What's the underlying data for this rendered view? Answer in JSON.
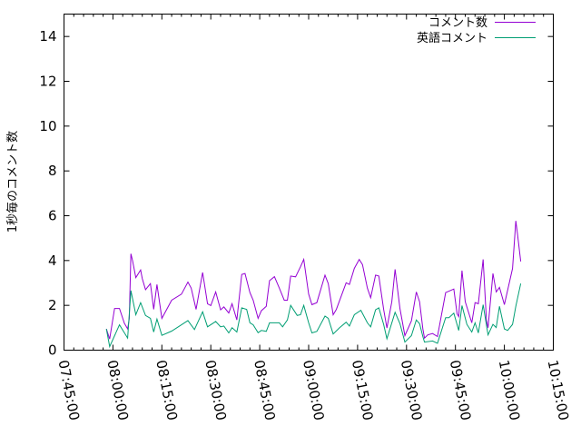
{
  "chart_data": {
    "type": "line",
    "title": "",
    "xlabel": "",
    "ylabel": "1秒毎のコメント数",
    "xlim": [
      "07:45:00",
      "10:15:00"
    ],
    "ylim": [
      0,
      15
    ],
    "x_ticks": [
      "07:45:00",
      "08:00:00",
      "08:15:00",
      "08:30:00",
      "08:45:00",
      "09:00:00",
      "09:15:00",
      "09:30:00",
      "09:45:00",
      "10:00:00",
      "10:15:00"
    ],
    "y_ticks": [
      "0",
      "2",
      "4",
      "6",
      "8",
      "10",
      "12",
      "14"
    ],
    "grid": false,
    "legend_position": "top-right",
    "series": [
      {
        "name": "コメント数",
        "color": "#9400d3",
        "x": [
          "07:58:00",
          "07:59:00",
          "08:00:30",
          "08:02:00",
          "08:03:30",
          "08:04:30",
          "08:05:00",
          "08:05:30",
          "08:06:00",
          "08:07:00",
          "08:08:30",
          "08:09:00",
          "08:10:00",
          "08:11:30",
          "08:12:30",
          "08:13:30",
          "08:15:00",
          "08:18:00",
          "08:21:00",
          "08:23:00",
          "08:24:00",
          "08:25:30",
          "08:27:30",
          "08:29:00",
          "08:30:00",
          "08:31:30",
          "08:33:00",
          "08:34:00",
          "08:35:30",
          "08:36:30",
          "08:38:00",
          "08:39:30",
          "08:40:30",
          "08:42:00",
          "08:43:00",
          "08:44:30",
          "08:45:30",
          "08:47:00",
          "08:48:00",
          "08:49:30",
          "08:51:00",
          "08:52:30",
          "08:53:30",
          "08:54:30",
          "08:56:00",
          "08:57:30",
          "08:58:30",
          "09:00:00",
          "09:01:00",
          "09:02:30",
          "09:05:00",
          "09:06:00",
          "09:07:30",
          "09:08:30",
          "09:11:30",
          "09:12:30",
          "09:14:00",
          "09:15:30",
          "09:16:30",
          "09:18:00",
          "09:19:00",
          "09:20:30",
          "09:21:30",
          "09:23:00",
          "09:24:00",
          "09:25:30",
          "09:26:30",
          "09:28:00",
          "09:29:30",
          "09:31:30",
          "09:33:00",
          "09:34:00",
          "09:35:00",
          "09:35:30",
          "09:36:30",
          "09:38:00",
          "09:39:30",
          "09:42:00",
          "09:43:00",
          "09:44:30",
          "09:45:30",
          "09:46:00",
          "09:47:00",
          "09:48:00",
          "09:50:00",
          "09:51:00",
          "09:52:00",
          "09:53:30",
          "09:54:30",
          "09:55:00",
          "09:56:30",
          "09:57:30",
          "09:58:30",
          "10:00:00",
          "10:02:30",
          "10:03:30",
          "10:04:00",
          "10:05:00"
        ],
        "y": [
          0.95,
          0.5,
          1.86,
          1.86,
          1.2,
          0.95,
          1.4,
          4.3,
          4.0,
          3.24,
          3.58,
          3.2,
          2.7,
          2.97,
          1.82,
          2.93,
          1.42,
          2.23,
          2.5,
          3.04,
          2.77,
          1.82,
          3.47,
          2.07,
          1.99,
          2.6,
          1.8,
          1.93,
          1.66,
          2.07,
          1.35,
          3.38,
          3.42,
          2.57,
          2.23,
          1.42,
          1.76,
          1.96,
          3.1,
          3.28,
          2.77,
          2.23,
          2.23,
          3.31,
          3.27,
          3.72,
          4.05,
          2.5,
          2.03,
          2.12,
          3.35,
          2.97,
          1.58,
          1.82,
          3.01,
          2.93,
          3.65,
          4.05,
          3.82,
          2.77,
          2.34,
          3.35,
          3.31,
          1.82,
          0.99,
          2.16,
          3.61,
          1.85,
          0.65,
          1.31,
          2.6,
          2.16,
          0.95,
          0.54,
          0.68,
          0.74,
          0.61,
          2.57,
          2.63,
          2.73,
          1.62,
          1.5,
          3.55,
          2.16,
          1.22,
          2.12,
          2.07,
          4.05,
          1.35,
          1.0,
          3.42,
          2.6,
          2.8,
          2.03,
          3.65,
          5.77,
          5.2,
          3.96
        ]
      },
      {
        "name": "英語コメント",
        "color": "#009e73",
        "x": [
          "07:58:00",
          "07:59:00",
          "08:02:00",
          "08:04:30",
          "08:05:30",
          "08:07:00",
          "08:08:30",
          "08:10:00",
          "08:11:30",
          "08:12:30",
          "08:13:30",
          "08:15:00",
          "08:18:00",
          "08:23:00",
          "08:25:00",
          "08:27:30",
          "08:29:00",
          "08:31:30",
          "08:33:00",
          "08:34:00",
          "08:35:30",
          "08:36:30",
          "08:38:00",
          "08:39:30",
          "08:41:00",
          "08:42:00",
          "08:43:00",
          "08:44:30",
          "08:45:30",
          "08:47:00",
          "08:48:00",
          "08:51:00",
          "08:52:00",
          "08:53:30",
          "08:54:30",
          "08:56:30",
          "08:57:30",
          "08:58:30",
          "09:00:00",
          "09:01:00",
          "09:02:30",
          "09:05:00",
          "09:06:00",
          "09:07:30",
          "09:09:30",
          "09:11:30",
          "09:12:30",
          "09:14:00",
          "09:16:00",
          "09:18:00",
          "09:19:00",
          "09:20:30",
          "09:21:30",
          "09:23:00",
          "09:24:00",
          "09:26:30",
          "09:28:00",
          "09:29:30",
          "09:31:30",
          "09:33:00",
          "09:34:00",
          "09:35:00",
          "09:35:30",
          "09:38:00",
          "09:39:30",
          "09:42:00",
          "09:43:00",
          "09:44:30",
          "09:46:00",
          "09:47:00",
          "09:48:30",
          "09:50:00",
          "09:51:00",
          "09:52:00",
          "09:53:30",
          "09:55:00",
          "09:56:30",
          "09:57:30",
          "09:58:30",
          "10:00:00",
          "10:01:00",
          "10:02:30",
          "10:03:30",
          "10:05:00"
        ],
        "y": [
          0.95,
          0.16,
          1.13,
          0.54,
          2.66,
          1.58,
          2.12,
          1.55,
          1.42,
          0.81,
          1.39,
          0.66,
          0.85,
          1.32,
          0.92,
          1.71,
          1.04,
          1.28,
          1.04,
          1.08,
          0.77,
          1.0,
          0.81,
          1.89,
          1.82,
          1.22,
          1.13,
          0.78,
          0.88,
          0.84,
          1.22,
          1.22,
          1.04,
          1.35,
          2.0,
          1.55,
          1.58,
          2.0,
          1.22,
          0.77,
          0.84,
          1.52,
          1.42,
          0.72,
          1.0,
          1.25,
          1.08,
          1.58,
          1.78,
          1.22,
          1.04,
          1.8,
          1.89,
          1.15,
          0.51,
          1.69,
          1.18,
          0.36,
          0.65,
          1.35,
          1.18,
          0.61,
          0.36,
          0.41,
          0.31,
          1.45,
          1.45,
          1.65,
          0.88,
          1.99,
          1.15,
          0.81,
          1.22,
          0.77,
          2.03,
          0.68,
          1.15,
          1.01,
          1.96,
          0.95,
          0.88,
          1.15,
          1.96,
          2.97
        ]
      }
    ]
  }
}
